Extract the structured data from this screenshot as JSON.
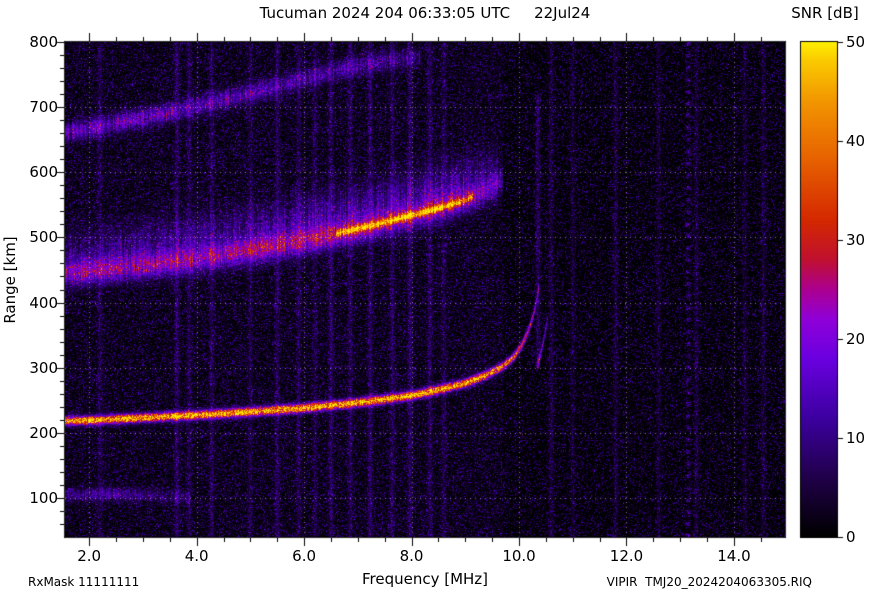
{
  "footer": {
    "rxmask": "RxMask 11111111",
    "file": "VIPIR  TMJ20_2024204063305.RIQ"
  },
  "chart_data": {
    "type": "heatmap",
    "title": "Tucuman 2024 204 06:33:05 UTC",
    "date_label": "22Jul24",
    "xlabel": "Frequency [MHz]",
    "ylabel": "Range [km]",
    "colorbar_label": "SNR [dB]",
    "xlim": [
      1.55,
      14.95
    ],
    "ylim": [
      40,
      800
    ],
    "xticks": [
      2,
      4,
      6,
      8,
      10,
      12,
      14
    ],
    "xtick_labels": [
      "2.0",
      "4.0",
      "6.0",
      "8.0",
      "10.0",
      "12.0",
      "14.0"
    ],
    "yticks": [
      100,
      200,
      300,
      400,
      500,
      600,
      700,
      800
    ],
    "ytick_labels": [
      "100",
      "200",
      "300",
      "400",
      "500",
      "600",
      "700",
      "800"
    ],
    "colorbar_range": [
      0,
      50
    ],
    "colorbar_ticks": [
      0,
      10,
      20,
      30,
      40,
      50
    ],
    "colorbar_tick_labels": [
      "0",
      "10",
      "20",
      "30",
      "40",
      "50"
    ],
    "grid": "dotted-white-at-major-ticks",
    "colormap_stops": [
      {
        "value": 0,
        "color": "#000000"
      },
      {
        "value": 6,
        "color": "#20004a"
      },
      {
        "value": 12,
        "color": "#3c00a0"
      },
      {
        "value": 18,
        "color": "#6a00e0"
      },
      {
        "value": 22,
        "color": "#9000d8"
      },
      {
        "value": 25,
        "color": "#ac0090"
      },
      {
        "value": 28,
        "color": "#c01030"
      },
      {
        "value": 32,
        "color": "#d42800"
      },
      {
        "value": 38,
        "color": "#e66000"
      },
      {
        "value": 44,
        "color": "#f29500"
      },
      {
        "value": 48,
        "color": "#fac800"
      },
      {
        "value": 50,
        "color": "#ffee00"
      }
    ],
    "traces": [
      {
        "name": "F-region 1st hop O-trace",
        "sigma_km": 4.5,
        "col_jitter": 0.15,
        "points": [
          [
            1.55,
            218,
            40
          ],
          [
            2.0,
            219,
            44
          ],
          [
            3.0,
            223,
            45
          ],
          [
            4.0,
            227,
            45
          ],
          [
            5.0,
            232,
            44
          ],
          [
            6.0,
            238,
            45
          ],
          [
            7.0,
            246,
            44
          ],
          [
            8.0,
            257,
            44
          ],
          [
            8.5,
            266,
            43
          ],
          [
            9.0,
            276,
            41
          ],
          [
            9.4,
            289,
            39
          ],
          [
            9.7,
            302,
            37
          ],
          [
            9.9,
            316,
            33
          ],
          [
            10.05,
            334,
            29
          ],
          [
            10.15,
            352,
            25
          ],
          [
            10.25,
            375,
            21
          ],
          [
            10.32,
            400,
            16
          ],
          [
            10.38,
            430,
            12
          ]
        ]
      },
      {
        "name": "F-region X-mode cusp",
        "sigma_km": 5,
        "col_jitter": 0.3,
        "points": [
          [
            10.34,
            302,
            18
          ],
          [
            10.42,
            328,
            22
          ],
          [
            10.48,
            352,
            18
          ],
          [
            10.53,
            374,
            12
          ]
        ]
      },
      {
        "name": "F-region 2nd hop diffuse",
        "sigma_km": 13,
        "col_jitter": 0.35,
        "points": [
          [
            1.55,
            444,
            15
          ],
          [
            2.0,
            448,
            17
          ],
          [
            3.0,
            456,
            16
          ],
          [
            4.0,
            466,
            17
          ],
          [
            5.0,
            479,
            17
          ],
          [
            6.0,
            494,
            18
          ],
          [
            7.0,
            512,
            18
          ],
          [
            7.5,
            522,
            18
          ],
          [
            8.0,
            533,
            18
          ],
          [
            8.5,
            545,
            17
          ],
          [
            9.0,
            557,
            15
          ],
          [
            9.3,
            567,
            13
          ],
          [
            9.55,
            579,
            11
          ],
          [
            9.7,
            589,
            9
          ]
        ]
      },
      {
        "name": "2nd hop bright core",
        "sigma_km": 3.5,
        "col_jitter": 0.25,
        "points": [
          [
            6.6,
            506,
            22
          ],
          [
            7.0,
            513,
            25
          ],
          [
            7.5,
            523,
            27
          ],
          [
            8.0,
            534,
            29
          ],
          [
            8.3,
            540,
            29
          ],
          [
            8.6,
            547,
            27
          ],
          [
            8.9,
            554,
            24
          ],
          [
            9.15,
            562,
            20
          ]
        ]
      },
      {
        "name": "spread-F cloud above 2nd hop",
        "sigma_km": 26,
        "col_jitter": 0.5,
        "points": [
          [
            1.55,
            468,
            6
          ],
          [
            3.0,
            486,
            7
          ],
          [
            5.0,
            507,
            8
          ],
          [
            7.0,
            540,
            9
          ],
          [
            8.0,
            560,
            9
          ],
          [
            9.0,
            584,
            8
          ],
          [
            9.6,
            602,
            6
          ]
        ]
      },
      {
        "name": "3rd reflection band",
        "sigma_km": 10,
        "col_jitter": 0.5,
        "points": [
          [
            1.55,
            660,
            12
          ],
          [
            2.0,
            667,
            13
          ],
          [
            3.0,
            683,
            13
          ],
          [
            4.0,
            701,
            13
          ],
          [
            5.0,
            721,
            12
          ],
          [
            5.5,
            732,
            12
          ],
          [
            6.0,
            743,
            11
          ],
          [
            6.5,
            754,
            10
          ],
          [
            7.0,
            763,
            9
          ],
          [
            7.5,
            770,
            8
          ],
          [
            8.2,
            777,
            6
          ]
        ]
      },
      {
        "name": "E-region patch",
        "sigma_km": 7,
        "col_jitter": 0.5,
        "points": [
          [
            1.55,
            103,
            8
          ],
          [
            2.2,
            106,
            9
          ],
          [
            2.8,
            105,
            8
          ],
          [
            3.4,
            103,
            6
          ],
          [
            3.9,
            100,
            4
          ]
        ]
      }
    ],
    "rfi_lines": [
      {
        "freq": 2.2,
        "snr": 6
      },
      {
        "freq": 3.63,
        "snr": 9
      },
      {
        "freq": 3.86,
        "snr": 7
      },
      {
        "freq": 4.28,
        "snr": 8
      },
      {
        "freq": 5.0,
        "snr": 6
      },
      {
        "freq": 5.5,
        "snr": 8
      },
      {
        "freq": 5.9,
        "snr": 7
      },
      {
        "freq": 6.2,
        "snr": 6
      },
      {
        "freq": 6.5,
        "snr": 9
      },
      {
        "freq": 6.86,
        "snr": 8
      },
      {
        "freq": 7.23,
        "snr": 9
      },
      {
        "freq": 7.64,
        "snr": 8
      },
      {
        "freq": 7.97,
        "snr": 9
      },
      {
        "freq": 8.34,
        "snr": 8
      },
      {
        "freq": 8.6,
        "snr": 6
      },
      {
        "freq": 10.35,
        "snr": 10,
        "km_range": [
          300,
          720
        ]
      },
      {
        "freq": 10.6,
        "snr": 7
      },
      {
        "freq": 11.0,
        "snr": 5
      },
      {
        "freq": 11.8,
        "snr": 6
      },
      {
        "freq": 12.6,
        "snr": 5
      },
      {
        "freq": 13.15,
        "snr": 14,
        "dashed": true
      },
      {
        "freq": 13.3,
        "snr": 6
      },
      {
        "freq": 14.2,
        "snr": 5
      },
      {
        "freq": 14.55,
        "snr": 6
      }
    ]
  }
}
